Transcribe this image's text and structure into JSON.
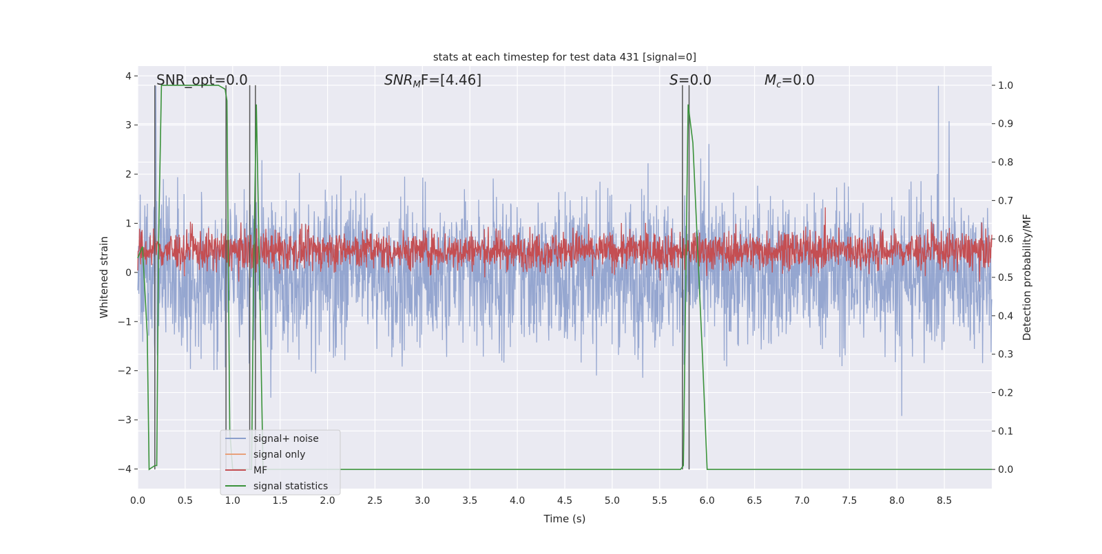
{
  "chart_data": {
    "type": "line",
    "title": "stats at each timestep for test data 431 [signal=0]",
    "xlabel": "Time (s)",
    "ylabel_left": "Whitened strain",
    "ylabel_right": "Detection probability/MF",
    "xlim": [
      0.0,
      9.0
    ],
    "ylim_left": [
      -4.4,
      4.2
    ],
    "ylim_right": [
      -0.05,
      1.05
    ],
    "x_ticks": [
      "0.0",
      "0.5",
      "1.0",
      "1.5",
      "2.0",
      "2.5",
      "3.0",
      "3.5",
      "4.0",
      "4.5",
      "5.0",
      "5.5",
      "6.0",
      "6.5",
      "7.0",
      "7.5",
      "8.0",
      "8.5"
    ],
    "y_ticks_left": [
      "−4",
      "−3",
      "−2",
      "−1",
      "0",
      "1",
      "2",
      "3",
      "4"
    ],
    "y_ticks_right": [
      "0.0",
      "0.1",
      "0.2",
      "0.3",
      "0.4",
      "0.5",
      "0.6",
      "0.7",
      "0.8",
      "0.9",
      "1.0"
    ],
    "grid": true,
    "legend_position": "bottom-left",
    "annotations": [
      {
        "label": "SNR_opt=0.0"
      },
      {
        "label": "SNR",
        "sub": "M",
        "rest": "F=[4.46]"
      },
      {
        "label": "S",
        "rest": "=0.0"
      },
      {
        "label": "M",
        "sub": "c",
        "rest": "=0.0"
      }
    ],
    "series": [
      {
        "name": "signal+ noise",
        "color": "#8c9fcc",
        "axis": "left",
        "description_range": [
          -3.9,
          3.8
        ]
      },
      {
        "name": "signal only",
        "color": "#e8a07a",
        "axis": "left",
        "values": []
      },
      {
        "name": "MF",
        "color": "#c44e52",
        "axis": "right",
        "band": [
          0.52,
          0.62
        ]
      },
      {
        "name": "signal statistics",
        "color": "#3a923a",
        "axis": "right",
        "x": [
          0.0,
          0.05,
          0.1,
          0.12,
          0.18,
          0.2,
          0.22,
          0.25,
          0.85,
          0.92,
          0.94,
          0.97,
          1.0,
          1.2,
          1.22,
          1.25,
          1.28,
          1.32,
          5.72,
          5.75,
          5.8,
          5.85,
          5.95,
          6.0,
          9.0
        ],
        "values": [
          0.55,
          0.58,
          0.35,
          0.0,
          0.01,
          0.01,
          0.6,
          1.0,
          1.0,
          0.99,
          0.96,
          0.1,
          0.0,
          0.0,
          0.5,
          0.95,
          0.55,
          0.0,
          0.0,
          0.01,
          0.95,
          0.85,
          0.3,
          0.0,
          0.0
        ]
      }
    ],
    "vertical_markers": [
      0.18,
      0.93,
      1.18,
      1.24,
      5.74,
      5.81
    ]
  }
}
